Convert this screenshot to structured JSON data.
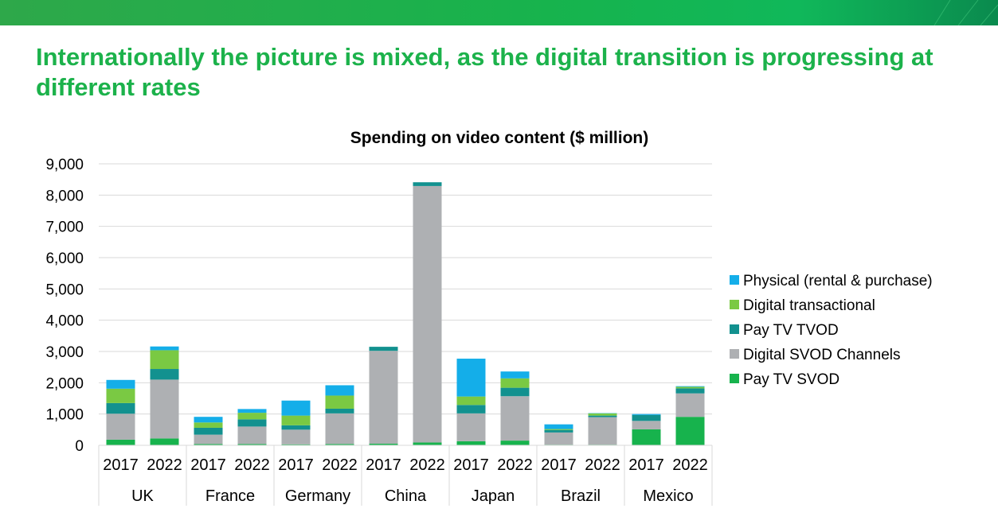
{
  "slide": {
    "headline": "Internationally the picture is mixed, as the digital transition is progressing at different rates",
    "accent_color": "#1cb24b"
  },
  "chart_data": {
    "type": "bar",
    "stacked": true,
    "title": "Spending on video content ($ million)",
    "xlabel": "",
    "ylabel": "",
    "ylim": [
      0,
      9000
    ],
    "yticks": [
      "0",
      "1,000",
      "2,000",
      "3,000",
      "4,000",
      "5,000",
      "6,000",
      "7,000",
      "8,000",
      "9,000"
    ],
    "grid": true,
    "legend_position": "right",
    "groups": [
      "UK",
      "France",
      "Germany",
      "China",
      "Japan",
      "Brazil",
      "Mexico"
    ],
    "years": [
      "2017",
      "2022"
    ],
    "categories": [
      "UK 2017",
      "UK 2022",
      "France 2017",
      "France 2022",
      "Germany 2017",
      "Germany 2022",
      "China 2017",
      "China 2022",
      "Japan 2017",
      "Japan 2022",
      "Brazil 2017",
      "Brazil 2022",
      "Mexico 2017",
      "Mexico 2022"
    ],
    "series": [
      {
        "name": "Pay TV SVOD",
        "color": "#17b34d",
        "values": [
          180,
          220,
          40,
          40,
          30,
          40,
          50,
          90,
          130,
          150,
          20,
          20,
          510,
          910
        ]
      },
      {
        "name": "Digital SVOD Channels",
        "color": "#aeb0b3",
        "values": [
          830,
          1880,
          300,
          560,
          470,
          980,
          2970,
          8200,
          890,
          1420,
          390,
          880,
          270,
          750
        ]
      },
      {
        "name": "Pay TV TVOD",
        "color": "#12918f",
        "values": [
          340,
          340,
          220,
          230,
          140,
          150,
          130,
          120,
          270,
          270,
          80,
          50,
          190,
          160
        ]
      },
      {
        "name": "Digital transactional",
        "color": "#7ac943",
        "values": [
          460,
          600,
          170,
          210,
          310,
          420,
          0,
          0,
          270,
          300,
          30,
          70,
          0,
          50
        ]
      },
      {
        "name": "Physical (rental & purchase)",
        "color": "#14aee9",
        "values": [
          280,
          120,
          180,
          120,
          480,
          330,
          0,
          0,
          1210,
          220,
          150,
          10,
          30,
          20
        ]
      }
    ]
  }
}
